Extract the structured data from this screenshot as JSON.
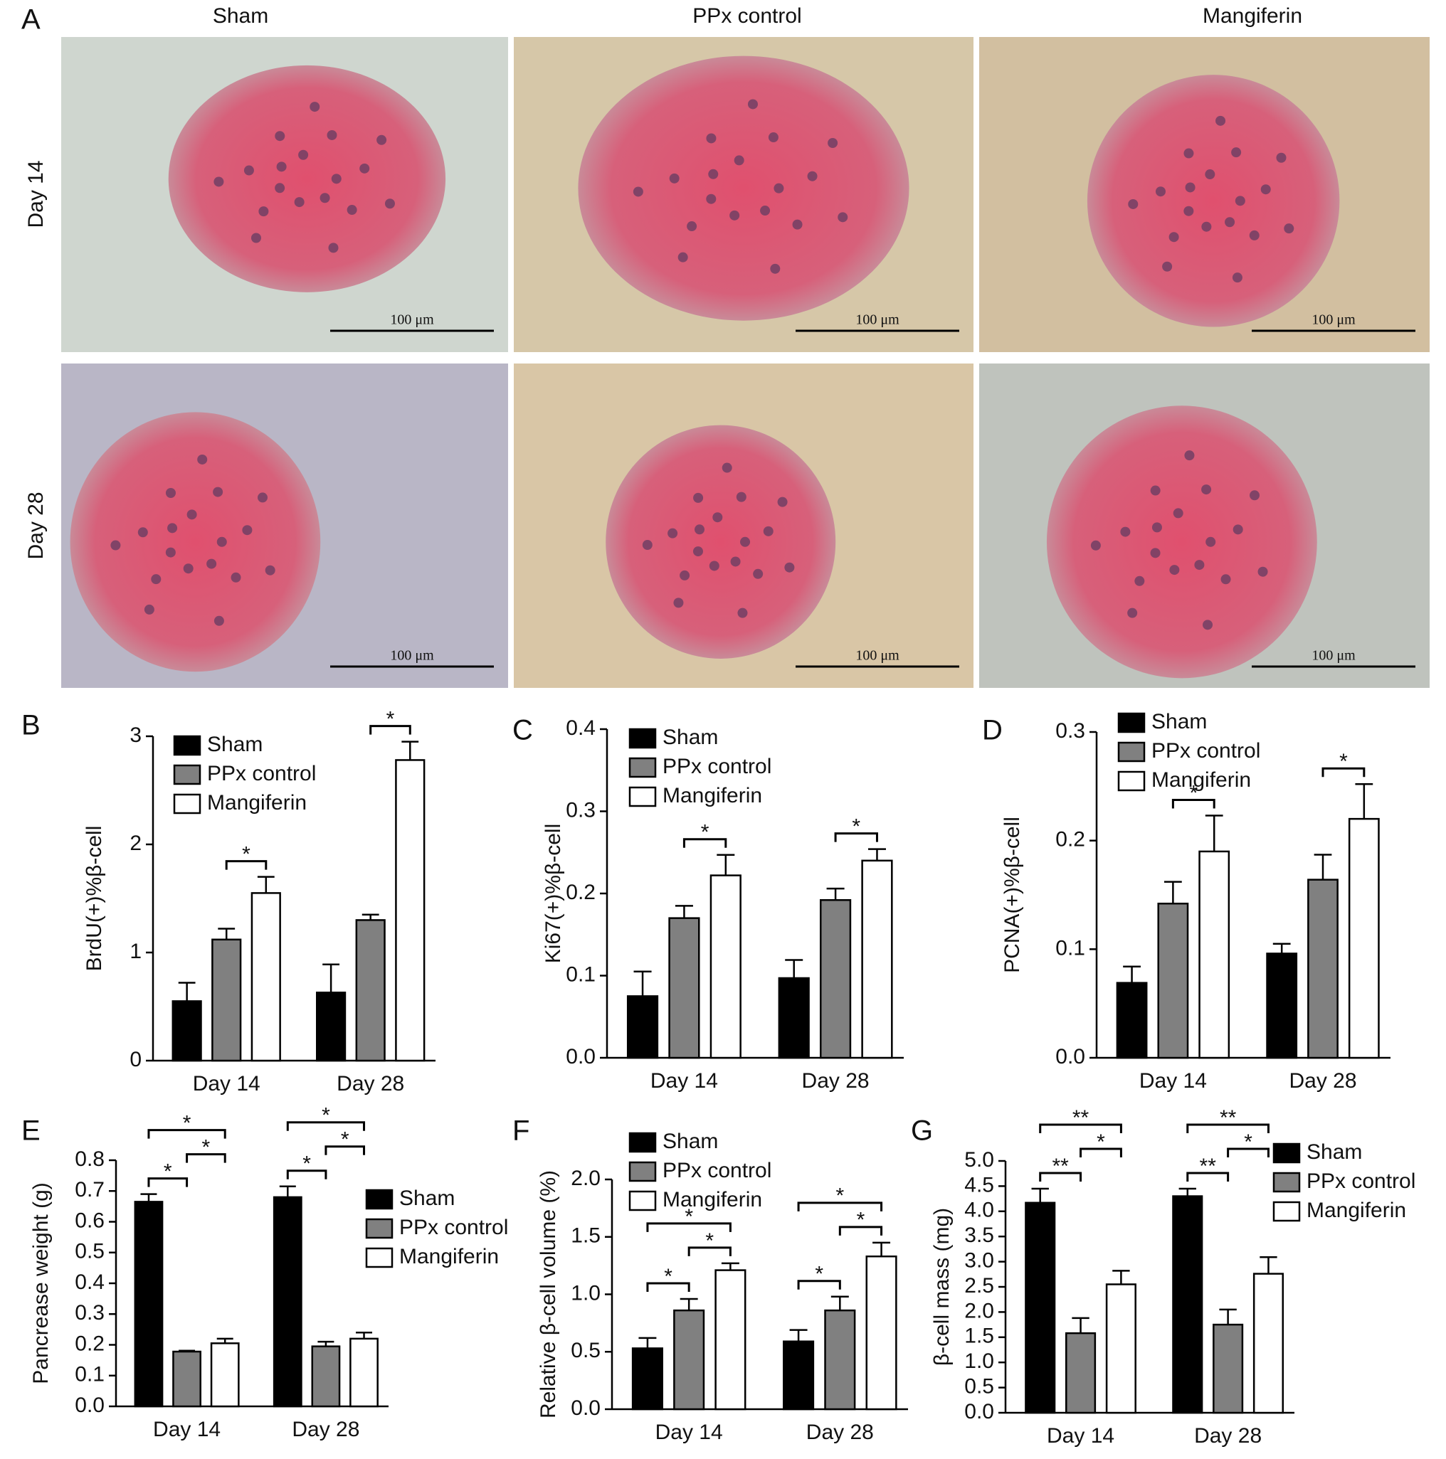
{
  "panel_a": {
    "label": "A",
    "columns": [
      "Sham",
      "PPx control",
      "Mangiferin"
    ],
    "rows": [
      "Day 14",
      "Day 28"
    ],
    "scale_bar": "100 μm"
  },
  "chart_data": [
    {
      "type": "bar",
      "panel": "B",
      "ylabel": "BrdU(+)%β-cell",
      "categories": [
        "Day 14",
        "Day 28"
      ],
      "series": [
        {
          "name": "Sham",
          "color": "#000000",
          "values": [
            0.55,
            0.63
          ],
          "errors": [
            0.17,
            0.26
          ]
        },
        {
          "name": "PPx control",
          "color": "#808080",
          "values": [
            1.12,
            1.3
          ],
          "errors": [
            0.1,
            0.05
          ]
        },
        {
          "name": "Mangiferin",
          "color": "#ffffff",
          "values": [
            1.55,
            2.78
          ],
          "errors": [
            0.15,
            0.17
          ]
        }
      ],
      "ylim": [
        0,
        3
      ],
      "yticks": [
        0,
        1,
        2,
        3
      ],
      "annotations": [
        {
          "text": "*",
          "group": 0,
          "from": 1,
          "to": 2
        },
        {
          "text": "*",
          "group": 1,
          "from": 1,
          "to": 2
        }
      ]
    },
    {
      "type": "bar",
      "panel": "C",
      "ylabel": "Ki67(+)%β-cell",
      "categories": [
        "Day 14",
        "Day 28"
      ],
      "series": [
        {
          "name": "Sham",
          "color": "#000000",
          "values": [
            0.075,
            0.097
          ],
          "errors": [
            0.03,
            0.022
          ]
        },
        {
          "name": "PPx control",
          "color": "#808080",
          "values": [
            0.17,
            0.192
          ],
          "errors": [
            0.015,
            0.014
          ]
        },
        {
          "name": "Mangiferin",
          "color": "#ffffff",
          "values": [
            0.222,
            0.24
          ],
          "errors": [
            0.025,
            0.014
          ]
        }
      ],
      "ylim": [
        0,
        0.4
      ],
      "yticks": [
        {
          "value": 0,
          "label": "0.0"
        },
        0.1,
        0.2,
        0.3,
        0.4
      ],
      "annotations": [
        {
          "text": "*",
          "group": 0,
          "from": 1,
          "to": 2
        },
        {
          "text": "*",
          "group": 1,
          "from": 1,
          "to": 2
        }
      ]
    },
    {
      "type": "bar",
      "panel": "D",
      "ylabel": "PCNA(+)%β-cell",
      "categories": [
        "Day 14",
        "Day 28"
      ],
      "series": [
        {
          "name": "Sham",
          "color": "#000000",
          "values": [
            0.069,
            0.096
          ],
          "errors": [
            0.015,
            0.009
          ]
        },
        {
          "name": "PPx control",
          "color": "#808080",
          "values": [
            0.142,
            0.164
          ],
          "errors": [
            0.02,
            0.023
          ]
        },
        {
          "name": "Mangiferin",
          "color": "#ffffff",
          "values": [
            0.19,
            0.22
          ],
          "errors": [
            0.033,
            0.032
          ]
        }
      ],
      "ylim": [
        0,
        0.3
      ],
      "yticks": [
        {
          "value": 0,
          "label": "0.0"
        },
        0.1,
        0.2,
        0.3
      ],
      "annotations": [
        {
          "text": "*",
          "group": 0,
          "from": 1,
          "to": 2
        },
        {
          "text": "*",
          "group": 1,
          "from": 1,
          "to": 2
        }
      ]
    },
    {
      "type": "bar",
      "panel": "E",
      "ylabel": "Pancrease weight (g)",
      "categories": [
        "Day 14",
        "Day 28"
      ],
      "series": [
        {
          "name": "Sham",
          "color": "#000000",
          "values": [
            0.665,
            0.68
          ],
          "errors": [
            0.025,
            0.035
          ]
        },
        {
          "name": "PPx control",
          "color": "#808080",
          "values": [
            0.178,
            0.195
          ],
          "errors": [
            0.003,
            0.015
          ]
        },
        {
          "name": "Mangiferin",
          "color": "#ffffff",
          "values": [
            0.205,
            0.22
          ],
          "errors": [
            0.015,
            0.02
          ]
        }
      ],
      "ylim": [
        0,
        0.8
      ],
      "yticks": [
        {
          "value": 0,
          "label": "0.0"
        },
        0.1,
        0.2,
        0.3,
        0.4,
        0.5,
        0.6,
        0.7,
        0.8
      ],
      "annotations": [
        {
          "text": "*",
          "group": 0,
          "from": 0,
          "to": 1
        },
        {
          "text": "*",
          "group": 0,
          "from": 0,
          "to": 2
        },
        {
          "text": "*",
          "group": 0,
          "from": 1,
          "to": 2
        },
        {
          "text": "*",
          "group": 1,
          "from": 0,
          "to": 1
        },
        {
          "text": "*",
          "group": 1,
          "from": 0,
          "to": 2
        },
        {
          "text": "*",
          "group": 1,
          "from": 1,
          "to": 2
        }
      ]
    },
    {
      "type": "bar",
      "panel": "F",
      "ylabel": "Relative β-cell volume (%)",
      "categories": [
        "Day 14",
        "Day 28"
      ],
      "series": [
        {
          "name": "Sham",
          "color": "#000000",
          "values": [
            0.53,
            0.59
          ],
          "errors": [
            0.09,
            0.1
          ]
        },
        {
          "name": "PPx control",
          "color": "#808080",
          "values": [
            0.86,
            0.86
          ],
          "errors": [
            0.1,
            0.12
          ]
        },
        {
          "name": "Mangiferin",
          "color": "#ffffff",
          "values": [
            1.21,
            1.33
          ],
          "errors": [
            0.06,
            0.12
          ]
        }
      ],
      "ylim": [
        0,
        2
      ],
      "yticks": [
        {
          "value": 0,
          "label": "0.0"
        },
        0.5,
        {
          "value": 1,
          "label": "1.0"
        },
        1.5,
        {
          "value": 2,
          "label": "2.0"
        }
      ],
      "annotations": [
        {
          "text": "*",
          "group": 0,
          "from": 0,
          "to": 1
        },
        {
          "text": "*",
          "group": 0,
          "from": 1,
          "to": 2
        },
        {
          "text": "*",
          "group": 0,
          "from": 0,
          "to": 2
        },
        {
          "text": "*",
          "group": 1,
          "from": 0,
          "to": 1
        },
        {
          "text": "*",
          "group": 1,
          "from": 1,
          "to": 2
        },
        {
          "text": "*",
          "group": 1,
          "from": 0,
          "to": 2
        }
      ]
    },
    {
      "type": "bar",
      "panel": "G",
      "ylabel": "β-cell mass (mg)",
      "categories": [
        "Day 14",
        "Day 28"
      ],
      "series": [
        {
          "name": "Sham",
          "color": "#000000",
          "values": [
            4.17,
            4.3
          ],
          "errors": [
            0.28,
            0.15
          ]
        },
        {
          "name": "PPx control",
          "color": "#808080",
          "values": [
            1.58,
            1.75
          ],
          "errors": [
            0.3,
            0.3
          ]
        },
        {
          "name": "Mangiferin",
          "color": "#ffffff",
          "values": [
            2.55,
            2.76
          ],
          "errors": [
            0.27,
            0.33
          ]
        }
      ],
      "ylim": [
        0,
        5
      ],
      "yticks": [
        {
          "value": 0,
          "label": "0.0"
        },
        0.5,
        {
          "value": 1,
          "label": "1.0"
        },
        1.5,
        {
          "value": 2,
          "label": "2.0"
        },
        2.5,
        {
          "value": 3,
          "label": "3.0"
        },
        3.5,
        {
          "value": 4,
          "label": "4.0"
        },
        4.5,
        {
          "value": 5,
          "label": "5.0"
        }
      ],
      "annotations": [
        {
          "text": "**",
          "group": 0,
          "from": 0,
          "to": 1
        },
        {
          "text": "**",
          "group": 0,
          "from": 0,
          "to": 2
        },
        {
          "text": "*",
          "group": 0,
          "from": 1,
          "to": 2
        },
        {
          "text": "**",
          "group": 1,
          "from": 0,
          "to": 1
        },
        {
          "text": "**",
          "group": 1,
          "from": 0,
          "to": 2
        },
        {
          "text": "*",
          "group": 1,
          "from": 1,
          "to": 2
        }
      ]
    }
  ]
}
